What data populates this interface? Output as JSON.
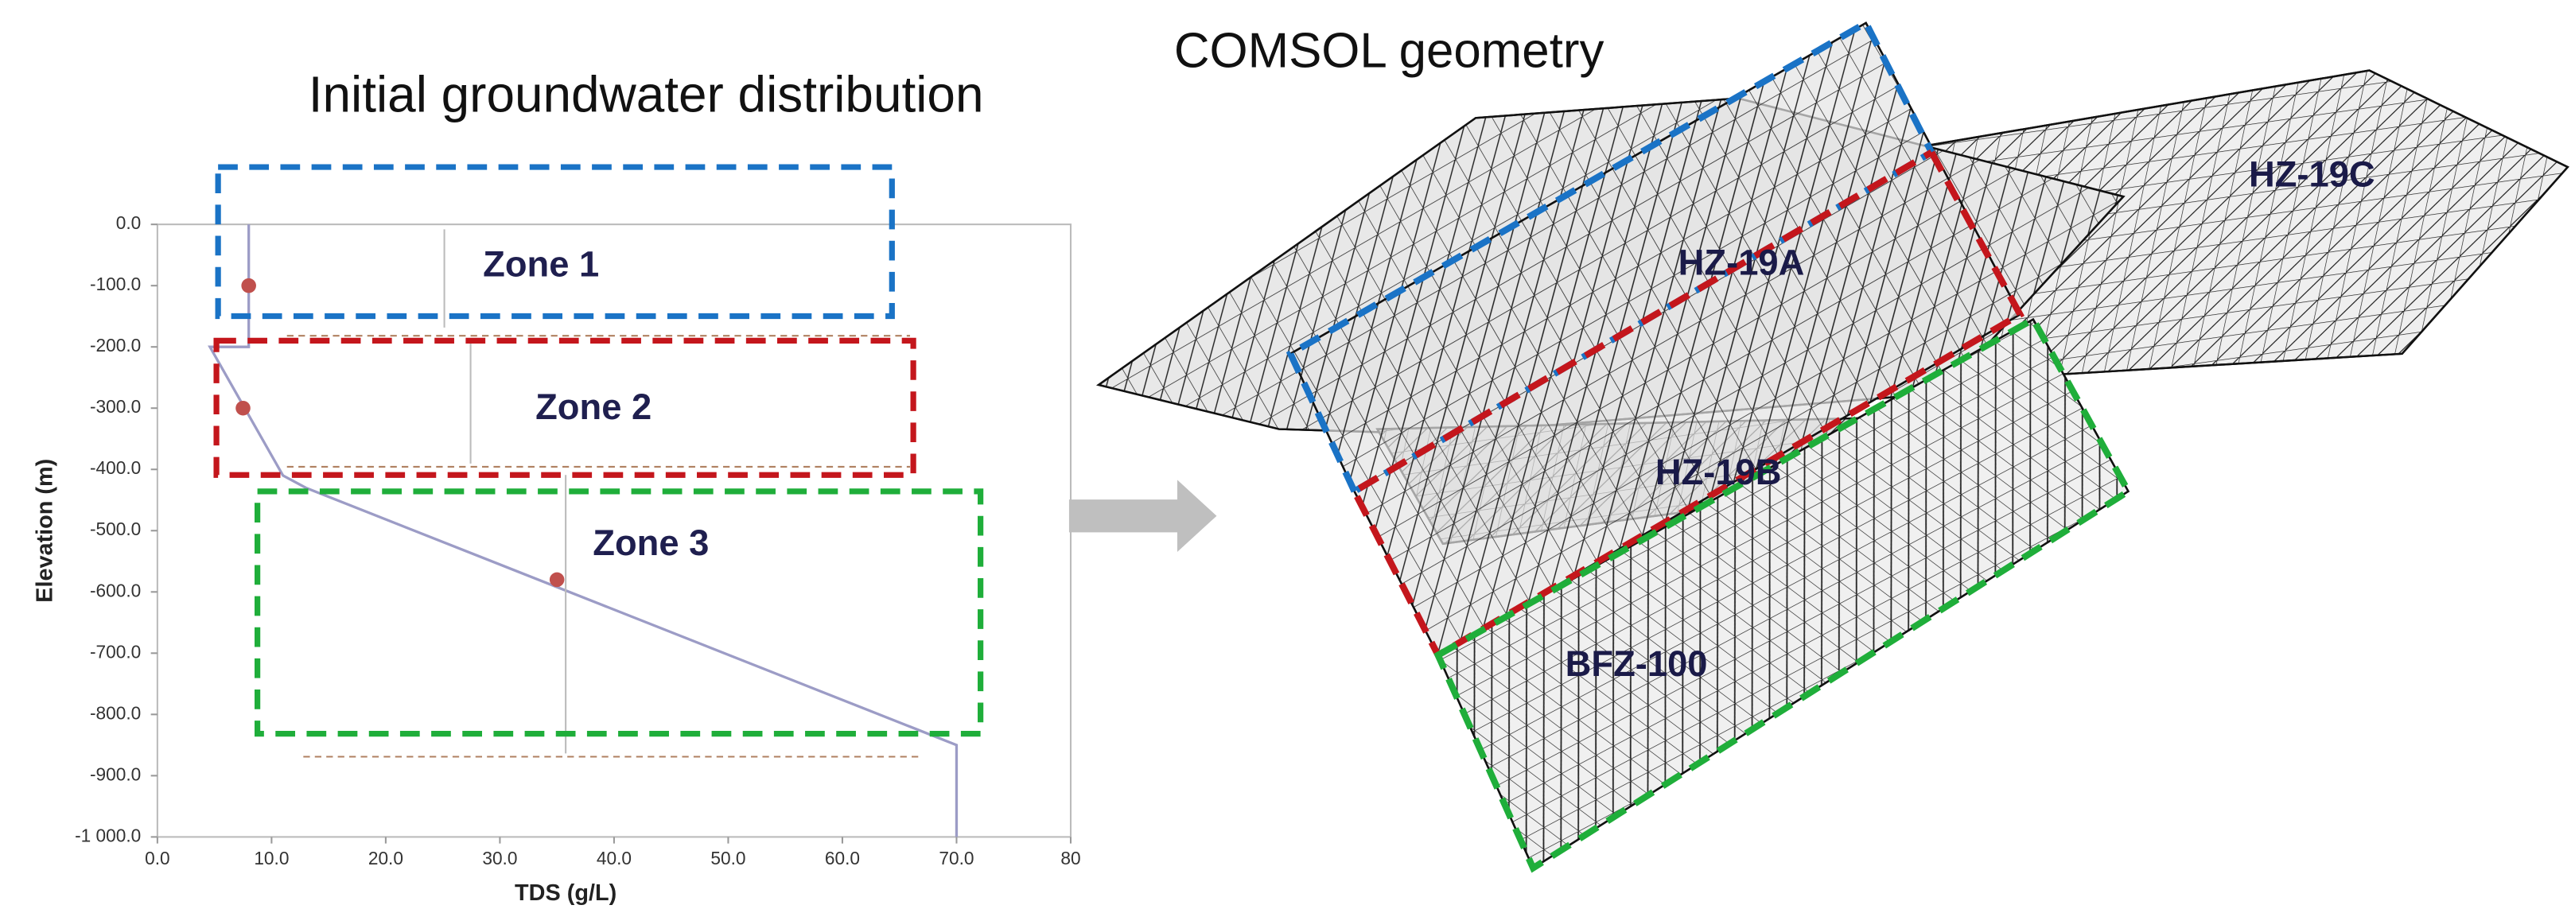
{
  "chart_data": {
    "type": "line",
    "title": "Initial groundwater distribution",
    "x_label": "TDS (g/L)",
    "y_label": "Elevation (m)",
    "xlim": [
      0,
      80
    ],
    "ylim": [
      -1000,
      0
    ],
    "xticks": [
      {
        "value": 0,
        "label": "0.0"
      },
      {
        "value": 10,
        "label": "10.0"
      },
      {
        "value": 20,
        "label": "20.0"
      },
      {
        "value": 30,
        "label": "30.0"
      },
      {
        "value": 40,
        "label": "40.0"
      },
      {
        "value": 50,
        "label": "50.0"
      },
      {
        "value": 60,
        "label": "60.0"
      },
      {
        "value": 70,
        "label": "70.0"
      },
      80
    ],
    "yticks": [
      {
        "value": 0,
        "label": "0.0"
      },
      {
        "value": -100,
        "label": "-100.0"
      },
      {
        "value": -200,
        "label": "-200.0"
      },
      {
        "value": -300,
        "label": "-300.0"
      },
      {
        "value": -400,
        "label": "-400.0"
      },
      {
        "value": -500,
        "label": "-500.0"
      },
      {
        "value": -600,
        "label": "-600.0"
      },
      {
        "value": -700,
        "label": "-700.0"
      },
      {
        "value": -800,
        "label": "-800.0"
      },
      {
        "value": -900,
        "label": "-900.0"
      },
      {
        "value": -1000,
        "label": "-1 000.0"
      }
    ],
    "series": [
      {
        "style": "line",
        "color": "#9c9cc6",
        "x": [
          8,
          8,
          4.6,
          11,
          13,
          70,
          70
        ],
        "values": [
          0,
          -200,
          -200,
          -410,
          -430,
          -850,
          -1000
        ]
      },
      {
        "style": "markers",
        "color": "#c0504d",
        "x": [
          8,
          7.5,
          35
        ],
        "values": [
          -100,
          -300,
          -580
        ]
      }
    ],
    "annotations": [
      "Zone 1",
      "Zone 2",
      "Zone 3"
    ]
  },
  "geometry": {
    "title": "COMSOL geometry",
    "labels": [
      "HZ-19C",
      "HZ-19A",
      "HZ-19B",
      "BFZ-100"
    ]
  }
}
